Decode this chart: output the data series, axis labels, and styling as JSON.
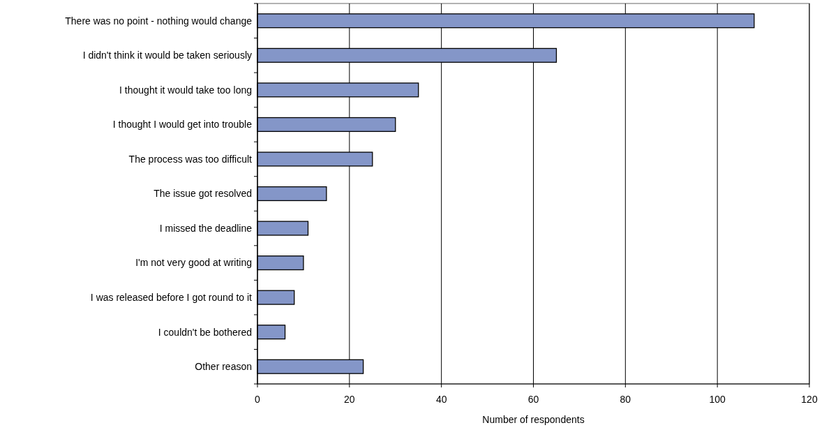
{
  "chart_data": {
    "type": "bar",
    "orientation": "horizontal",
    "xlabel": "Number of respondents",
    "categories": [
      "There was no point - nothing would change",
      "I didn't think it would be taken seriously",
      "I thought it would take too long",
      "I thought I would get into trouble",
      "The process was too difficult",
      "The issue got resolved",
      "I missed the deadline",
      "I'm not very good at writing",
      "I was released before I got round to it",
      "I couldn't be bothered",
      "Other reason"
    ],
    "values": [
      108,
      65,
      35,
      30,
      25,
      15,
      11,
      10,
      8,
      6,
      23
    ],
    "color": "#8496c8",
    "xlim": [
      0,
      120
    ],
    "xticks": [
      0,
      20,
      40,
      60,
      80,
      100,
      120
    ],
    "grid": "x"
  }
}
